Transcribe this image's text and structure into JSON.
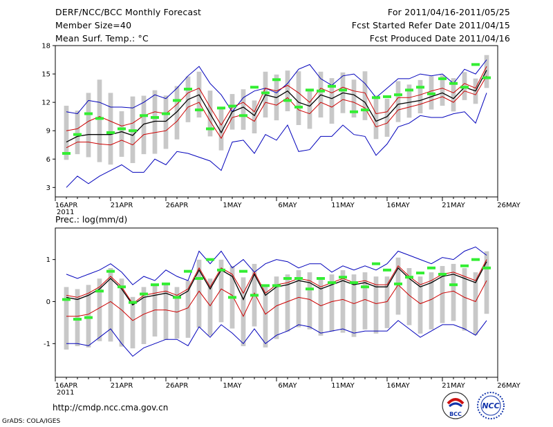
{
  "header": {
    "title": "DERF/NCC/BCC Monthly Forecast",
    "member": "Member Size=40",
    "variable": "Mean Surf. Temp.: °C",
    "period": "For 2011/04/16-2011/05/25",
    "started": "Fcst Started Refer Date 2011/04/15",
    "produced": "Fcst Produced Date 2011/04/16"
  },
  "footer": {
    "url": "http://cmdp.ncc.cma.gov.cn",
    "credit": "GrADS: COLA/IGES",
    "logo1_text": "BCC",
    "logo2_text": "NCC"
  },
  "colors": {
    "envelope": "#0000bb",
    "spread": "#cc0000",
    "mean": "#000000",
    "obs": "#33ee33",
    "box": "#c8c8c8"
  },
  "chart_data": [
    {
      "type": "line",
      "title": "Mean Surf. Temp.: °C",
      "x_tick_labels": [
        "16APR",
        "21APR",
        "26APR",
        "1MAY",
        "6MAY",
        "11MAY",
        "16MAY",
        "21MAY",
        "26MAY"
      ],
      "x_year_label": "2011",
      "ylim": [
        2,
        18
      ],
      "yticks": [
        3,
        6,
        9,
        12,
        15,
        18
      ],
      "days": 39,
      "series": [
        {
          "name": "max",
          "values": [
            11.0,
            10.8,
            12.2,
            12.0,
            11.5,
            11.5,
            11.4,
            12.0,
            12.8,
            12.4,
            13.5,
            14.8,
            15.8,
            14.0,
            12.8,
            11.0,
            12.5,
            13.2,
            13.5,
            13.0,
            14.0,
            15.5,
            16.0,
            14.5,
            13.8,
            14.8,
            15.0,
            14.0,
            12.5,
            13.5,
            14.5,
            14.5,
            15.0,
            14.8,
            15.0,
            14.0,
            15.5,
            15.0,
            16.5
          ]
        },
        {
          "name": "upper",
          "values": [
            9.0,
            9.2,
            10.0,
            10.5,
            10.0,
            9.5,
            9.8,
            10.6,
            11.0,
            10.8,
            11.8,
            13.0,
            13.5,
            11.5,
            9.6,
            11.5,
            12.0,
            11.0,
            13.5,
            13.2,
            13.8,
            13.0,
            12.0,
            13.5,
            13.0,
            13.6,
            13.2,
            13.0,
            10.8,
            11.0,
            12.5,
            12.5,
            12.8,
            13.2,
            13.5,
            13.0,
            14.0,
            13.5,
            15.8
          ]
        },
        {
          "name": "mean",
          "values": [
            7.8,
            8.4,
            8.6,
            8.6,
            8.6,
            8.9,
            8.5,
            9.7,
            10.0,
            10.0,
            11.0,
            12.3,
            12.8,
            10.8,
            8.8,
            11.0,
            11.5,
            10.6,
            12.8,
            12.5,
            13.2,
            12.0,
            11.6,
            12.8,
            12.4,
            13.0,
            12.8,
            12.0,
            10.0,
            10.5,
            11.8,
            12.0,
            12.2,
            12.6,
            13.0,
            12.4,
            13.6,
            13.2,
            15.4
          ]
        },
        {
          "name": "lower",
          "values": [
            7.2,
            7.8,
            7.8,
            7.6,
            7.5,
            8.0,
            7.5,
            8.6,
            8.8,
            9.0,
            10.0,
            11.5,
            12.0,
            10.0,
            8.2,
            10.4,
            10.7,
            10.0,
            12.0,
            11.7,
            12.5,
            11.2,
            10.8,
            12.0,
            11.5,
            12.3,
            12.0,
            11.4,
            9.4,
            9.8,
            11.2,
            11.5,
            11.8,
            12.2,
            12.6,
            12.0,
            13.2,
            12.8,
            14.8
          ]
        },
        {
          "name": "min",
          "values": [
            3.0,
            4.2,
            3.4,
            4.2,
            4.8,
            5.4,
            4.6,
            4.6,
            6.0,
            5.4,
            6.8,
            6.6,
            6.2,
            5.8,
            4.8,
            7.8,
            8.0,
            6.6,
            8.6,
            8.0,
            9.6,
            6.8,
            7.0,
            8.4,
            8.4,
            9.6,
            8.6,
            8.4,
            6.4,
            7.6,
            9.4,
            9.8,
            10.6,
            10.4,
            10.4,
            10.8,
            11.0,
            9.8,
            13.0
          ]
        },
        {
          "name": "observed",
          "values": [
            6.6,
            8.6,
            10.8,
            10.3,
            8.8,
            9.2,
            9.0,
            10.6,
            10.4,
            10.8,
            12.2,
            13.4,
            11.2,
            9.2,
            11.4,
            11.6,
            10.6,
            13.6,
            13.0,
            14.4,
            12.2,
            11.5,
            13.3,
            13.2,
            13.7,
            13.3,
            11.0,
            11.2,
            12.5,
            12.6,
            12.8,
            13.3,
            13.6,
            12.9,
            14.5,
            14.0,
            13.6,
            16.0,
            14.6
          ]
        }
      ]
    },
    {
      "type": "line",
      "title": "Prec.: log(mm/d)",
      "x_tick_labels": [
        "16APR",
        "21APR",
        "26APR",
        "1MAY",
        "6MAY",
        "11MAY",
        "16MAY",
        "21MAY",
        "26MAY"
      ],
      "x_year_label": "2011",
      "ylim": [
        -1.8,
        1.75
      ],
      "yticks": [
        -1,
        0,
        1
      ],
      "days": 39,
      "series": [
        {
          "name": "max",
          "values": [
            0.65,
            0.55,
            0.65,
            0.75,
            0.9,
            0.7,
            0.4,
            0.6,
            0.5,
            0.75,
            0.6,
            0.5,
            1.2,
            0.9,
            1.2,
            0.8,
            1.0,
            0.7,
            0.9,
            1.0,
            0.95,
            0.8,
            0.9,
            0.9,
            0.7,
            0.85,
            0.75,
            0.85,
            0.75,
            0.9,
            1.2,
            1.1,
            1.0,
            0.9,
            1.05,
            1.0,
            1.2,
            1.3,
            1.1
          ]
        },
        {
          "name": "upper",
          "values": [
            0.15,
            0.1,
            0.2,
            0.35,
            0.6,
            0.35,
            -0.05,
            0.15,
            0.2,
            0.25,
            0.15,
            0.3,
            0.8,
            0.35,
            0.8,
            0.65,
            0.2,
            0.7,
            0.2,
            0.4,
            0.45,
            0.55,
            0.5,
            0.35,
            0.45,
            0.55,
            0.45,
            0.5,
            0.4,
            0.4,
            0.85,
            0.6,
            0.4,
            0.5,
            0.65,
            0.7,
            0.6,
            0.5,
            1.0
          ]
        },
        {
          "name": "mean",
          "values": [
            0.1,
            0.05,
            0.15,
            0.3,
            0.55,
            0.3,
            -0.08,
            0.1,
            0.15,
            0.2,
            0.1,
            0.25,
            0.75,
            0.3,
            0.75,
            0.6,
            0.05,
            0.65,
            0.15,
            0.35,
            0.4,
            0.5,
            0.45,
            0.3,
            0.4,
            0.5,
            0.4,
            0.45,
            0.35,
            0.35,
            0.8,
            0.55,
            0.35,
            0.45,
            0.6,
            0.65,
            0.55,
            0.45,
            0.95
          ]
        },
        {
          "name": "lower",
          "values": [
            -0.35,
            -0.35,
            -0.3,
            -0.15,
            0.0,
            -0.2,
            -0.45,
            -0.3,
            -0.2,
            -0.2,
            -0.25,
            -0.15,
            0.25,
            -0.1,
            0.3,
            0.15,
            -0.35,
            0.2,
            -0.3,
            -0.1,
            0.0,
            0.1,
            0.05,
            -0.1,
            0.0,
            0.05,
            -0.05,
            0.05,
            -0.05,
            0.0,
            0.4,
            0.15,
            -0.05,
            0.05,
            0.2,
            0.25,
            0.1,
            0.0,
            0.5
          ]
        },
        {
          "name": "min",
          "values": [
            -1.0,
            -1.0,
            -1.05,
            -0.85,
            -0.65,
            -1.0,
            -1.3,
            -1.1,
            -1.0,
            -0.9,
            -0.9,
            -1.05,
            -0.6,
            -0.85,
            -0.55,
            -0.75,
            -1.0,
            -0.65,
            -1.0,
            -0.8,
            -0.7,
            -0.55,
            -0.6,
            -0.75,
            -0.7,
            -0.65,
            -0.75,
            -0.7,
            -0.7,
            -0.7,
            -0.45,
            -0.65,
            -0.85,
            -0.7,
            -0.55,
            -0.55,
            -0.65,
            -0.8,
            -0.45
          ]
        },
        {
          "name": "observed",
          "values": [
            0.05,
            -0.42,
            -0.38,
            0.25,
            0.72,
            0.35,
            -0.02,
            0.18,
            0.4,
            0.42,
            0.1,
            0.72,
            0.55,
            1.0,
            0.75,
            0.1,
            0.72,
            0.15,
            0.38,
            0.38,
            0.55,
            0.55,
            0.3,
            0.55,
            0.45,
            0.58,
            0.45,
            0.35,
            0.9,
            0.75,
            0.42,
            0.58,
            0.68,
            0.8,
            0.65,
            0.4,
            0.85,
            1.0,
            0.8
          ]
        }
      ]
    }
  ]
}
